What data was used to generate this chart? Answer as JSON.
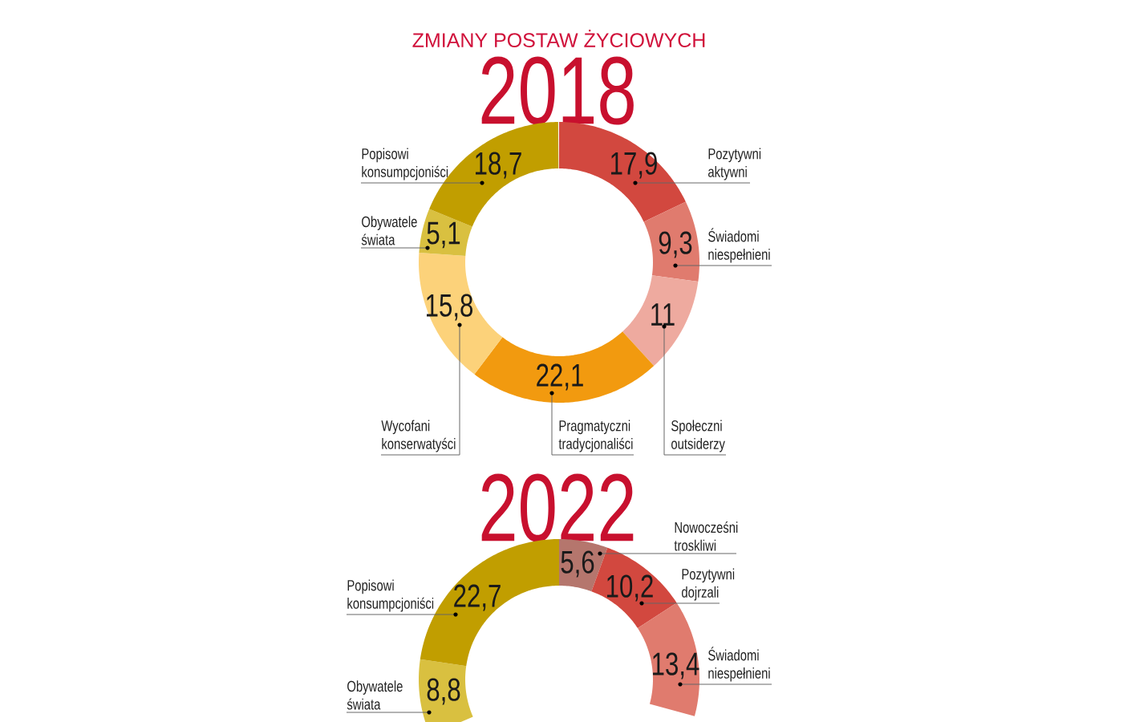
{
  "chart_data": [
    {
      "type": "donut",
      "title": "ZMIANY POSTAW ŻYCIOWYCH",
      "subtitle": "2018",
      "categories": [
        "Pozytywni aktywni",
        "Świadomi niespełnieni",
        "Społeczni outsiderzy",
        "Pragmatyczni tradycjonaliści",
        "Wycofani konserwatyści",
        "Obywatele świata",
        "Popisowi konsumpcjoniści"
      ],
      "values": [
        17.9,
        9.3,
        11,
        22.1,
        15.8,
        5.1,
        18.7
      ],
      "value_labels": [
        "17,9",
        "9,3",
        "11",
        "22,1",
        "15,8",
        "5,1",
        "18,7"
      ],
      "colors": [
        "#d2483f",
        "#e07b6e",
        "#eeaa9f",
        "#f29a0f",
        "#fcd27a",
        "#d9c040",
        "#c19e00"
      ]
    },
    {
      "type": "donut",
      "title": "2022",
      "categories": [
        "Nowocześni troskliwi",
        "Pozytywni dojrzali",
        "Świadomi niespełnieni",
        null,
        "Obywatele świata",
        "Popisowi konsumpcjoniści"
      ],
      "values": [
        5.6,
        10.2,
        13.4,
        null,
        8.8,
        22.7
      ],
      "value_labels": [
        "5,6",
        "10,2",
        "13,4",
        null,
        "8,8",
        "22,7"
      ],
      "colors": [
        "#b5766d",
        "#d2483f",
        "#e07b6e",
        null,
        "#d9c040",
        "#c19e00"
      ]
    }
  ]
}
